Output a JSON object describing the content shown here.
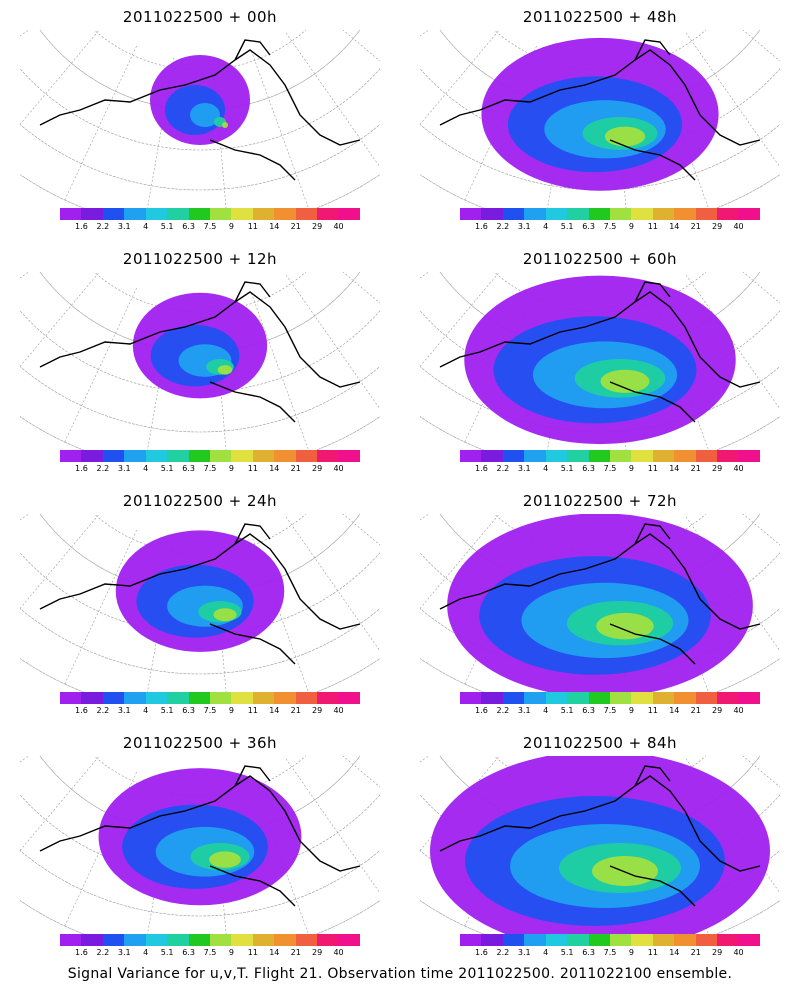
{
  "panels": [
    {
      "title": "2011022500 + 00h",
      "lead": 0
    },
    {
      "title": "2011022500 + 48h",
      "lead": 48
    },
    {
      "title": "2011022500 + 12h",
      "lead": 12
    },
    {
      "title": "2011022500 + 60h",
      "lead": 60
    },
    {
      "title": "2011022500 + 24h",
      "lead": 24
    },
    {
      "title": "2011022500 + 72h",
      "lead": 72
    },
    {
      "title": "2011022500 + 36h",
      "lead": 36
    },
    {
      "title": "2011022500 + 84h",
      "lead": 84
    }
  ],
  "colorbar": {
    "labels": [
      "1.6",
      "2.2",
      "3.1",
      "4",
      "5.1",
      "6.3",
      "7.5",
      "9",
      "11",
      "14",
      "21",
      "29",
      "40"
    ],
    "colors": [
      "#a020f0",
      "#7a1be0",
      "#2050f0",
      "#20a0f0",
      "#20c8e0",
      "#20d0a0",
      "#20c820",
      "#a0e040",
      "#e0e040",
      "#e0b030",
      "#f09030",
      "#f06040",
      "#f01870",
      "#f0108c"
    ]
  },
  "footer": "Signal Variance for u,v,T. Flight 21. Observation time 2011022500. 2011022100 ensemble."
}
